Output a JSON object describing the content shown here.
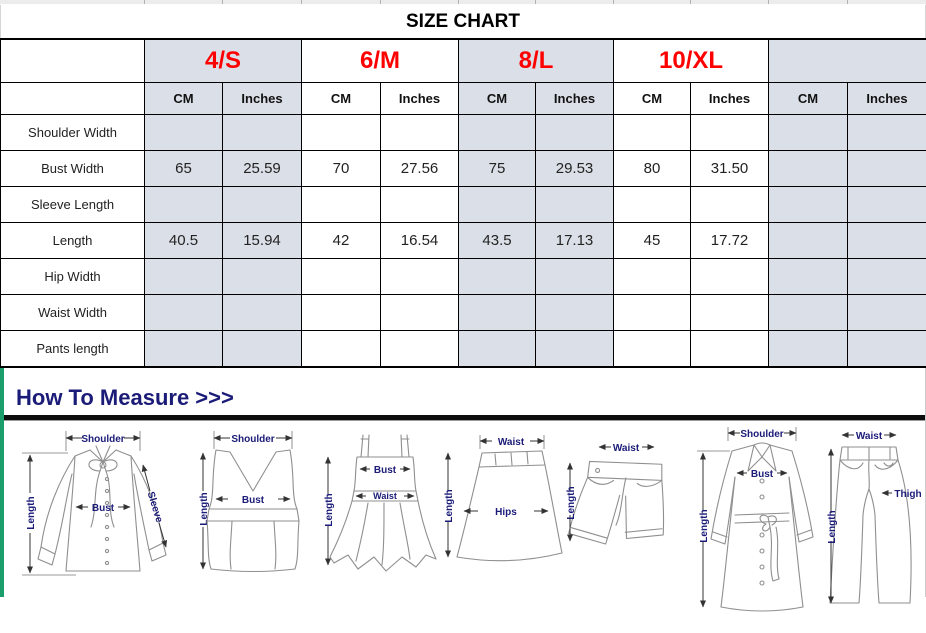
{
  "title": "SIZE CHART",
  "table": {
    "sizes": [
      {
        "label": "4/S"
      },
      {
        "label": "6/M"
      },
      {
        "label": "8/L"
      },
      {
        "label": "10/XL"
      },
      {
        "label": ""
      }
    ],
    "unit_headers": [
      "CM",
      "Inches"
    ],
    "rows": [
      {
        "label": "Shoulder Width",
        "values": [
          "",
          "",
          "",
          "",
          "",
          "",
          "",
          "",
          "",
          ""
        ]
      },
      {
        "label": "Bust Width",
        "values": [
          "65",
          "25.59",
          "70",
          "27.56",
          "75",
          "29.53",
          "80",
          "31.50",
          "",
          ""
        ]
      },
      {
        "label": "Sleeve Length",
        "values": [
          "",
          "",
          "",
          "",
          "",
          "",
          "",
          "",
          "",
          ""
        ]
      },
      {
        "label": "Length",
        "values": [
          "40.5",
          "15.94",
          "42",
          "16.54",
          "43.5",
          "17.13",
          "45",
          "17.72",
          "",
          ""
        ]
      },
      {
        "label": "Hip Width",
        "values": [
          "",
          "",
          "",
          "",
          "",
          "",
          "",
          "",
          "",
          ""
        ]
      },
      {
        "label": "Waist Width",
        "values": [
          "",
          "",
          "",
          "",
          "",
          "",
          "",
          "",
          "",
          ""
        ]
      },
      {
        "label": "Pants length",
        "values": [
          "",
          "",
          "",
          "",
          "",
          "",
          "",
          "",
          "",
          ""
        ]
      }
    ]
  },
  "measure": {
    "heading": "How To Measure >>>",
    "garments": [
      {
        "name": "blouse",
        "labels": {
          "top": "Shoulder",
          "left": "Length",
          "bust": "Bust",
          "sleeve": "Sleeve"
        }
      },
      {
        "name": "tank-top",
        "labels": {
          "top": "Shoulder",
          "left": "Length",
          "bust": "Bust"
        }
      },
      {
        "name": "dress",
        "labels": {
          "bust": "Bust",
          "waist": "Waist",
          "left": "Length"
        }
      },
      {
        "name": "skirt",
        "labels": {
          "top": "Waist",
          "left": "Length",
          "hips": "Hips"
        }
      },
      {
        "name": "shorts",
        "labels": {
          "top": "Waist",
          "left": "Length"
        }
      },
      {
        "name": "coat",
        "labels": {
          "top": "Shoulder",
          "bust": "Bust",
          "left": "Length"
        }
      },
      {
        "name": "pants",
        "labels": {
          "top": "Waist",
          "left": "Length",
          "thigh": "Thigh"
        }
      }
    ]
  },
  "colors": {
    "accent_red": "#fe0000",
    "header_fill": "#dbe0e8",
    "heading_navy": "#1b1b78",
    "section_green": "#1a9e6b",
    "grid_black": "#000000"
  }
}
